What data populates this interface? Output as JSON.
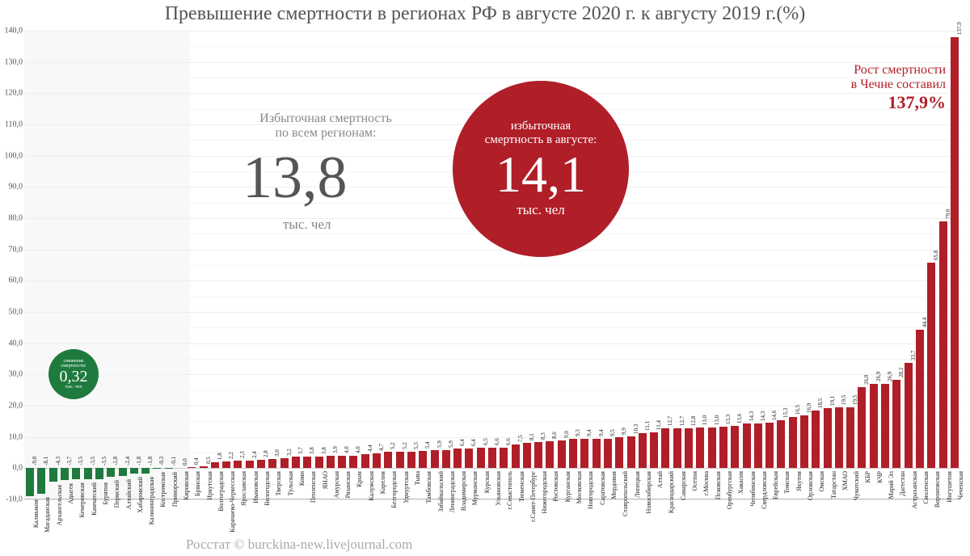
{
  "title": "Превышение смертности в регионах РФ в августе 2020 г. к августу 2019 г.(%)",
  "source": "Росстат © burckina-new.livejournal.com",
  "axes": {
    "ymin": -10,
    "ymax": 140,
    "ytick_step": 10,
    "gridline_color": "#eee",
    "gridline5_color": "#f5f5f5",
    "bg_color": "#ffffff",
    "title_color": "#555",
    "title_fontsize": 24,
    "yaxis_fontsize": 10,
    "source_fontsize": 17,
    "source_color": "#aaa"
  },
  "bars": {
    "neg_color": "#1f7a3e",
    "pos_color": "#b01e28",
    "label_fontsize": 8,
    "value_fontsize": 7,
    "neg_shade_color": "#f8f8f8",
    "items": [
      {
        "label": "Калмыкия",
        "v": -9.0
      },
      {
        "label": "Магаданская",
        "v": -8.1
      },
      {
        "label": "Архангельская",
        "v": -4.3
      },
      {
        "label": "Адыгея",
        "v": -3.7
      },
      {
        "label": "Кемеровская",
        "v": -3.5
      },
      {
        "label": "Камчатский",
        "v": -3.5
      },
      {
        "label": "Бурятия",
        "v": -3.5
      },
      {
        "label": "Пермский",
        "v": -2.8
      },
      {
        "label": "Алтайский",
        "v": -2.4
      },
      {
        "label": "Хабаровский",
        "v": -1.8
      },
      {
        "label": "Калининградская",
        "v": -1.8
      },
      {
        "label": "Костромская",
        "v": -0.3
      },
      {
        "label": "Приморский",
        "v": -0.1
      },
      {
        "label": "Кировская",
        "v": 0.0
      },
      {
        "label": "Брянская",
        "v": 0.4
      },
      {
        "label": "Иркутская",
        "v": 0.5
      },
      {
        "label": "Волгоградская",
        "v": 1.8
      },
      {
        "label": "Карачаево-Черкесская",
        "v": 2.2
      },
      {
        "label": "Ярославская",
        "v": 2.3
      },
      {
        "label": "Ивановская",
        "v": 2.4
      },
      {
        "label": "Вологодская",
        "v": 2.8
      },
      {
        "label": "Тверская",
        "v": 3.0
      },
      {
        "label": "Тульская",
        "v": 3.2
      },
      {
        "label": "Коми",
        "v": 3.7
      },
      {
        "label": "Пензенская",
        "v": 3.8
      },
      {
        "label": "ЯНАО",
        "v": 3.8
      },
      {
        "label": "Амурская",
        "v": 3.9
      },
      {
        "label": "Рязанская",
        "v": 4.0
      },
      {
        "label": "Крым",
        "v": 4.0
      },
      {
        "label": "Калужская",
        "v": 4.4
      },
      {
        "label": "Карелия",
        "v": 4.7
      },
      {
        "label": "Белгородская",
        "v": 5.2
      },
      {
        "label": "Удмуртская",
        "v": 5.2
      },
      {
        "label": "Тыва",
        "v": 5.3
      },
      {
        "label": "Тамбовская",
        "v": 5.4
      },
      {
        "label": "Забайкальский",
        "v": 5.9
      },
      {
        "label": "Ленинградская",
        "v": 5.9
      },
      {
        "label": "Владимирская",
        "v": 6.4
      },
      {
        "label": "Мурманская",
        "v": 6.4
      },
      {
        "label": "Курская",
        "v": 6.5
      },
      {
        "label": "Ульяновская",
        "v": 6.6
      },
      {
        "label": "г.Севастополь",
        "v": 6.6
      },
      {
        "label": "Тюменская",
        "v": 7.5
      },
      {
        "label": "г.Санкт-Петербург",
        "v": 8.1
      },
      {
        "label": "Нижегородская",
        "v": 8.3
      },
      {
        "label": "Ростовская",
        "v": 8.6
      },
      {
        "label": "Курганская",
        "v": 9.0
      },
      {
        "label": "Московская",
        "v": 9.3
      },
      {
        "label": "Новгородская",
        "v": 9.4
      },
      {
        "label": "Саратовская",
        "v": 9.4
      },
      {
        "label": "Мордовия",
        "v": 9.5
      },
      {
        "label": "Ставропольский",
        "v": 9.9
      },
      {
        "label": "Липецкая",
        "v": 10.3
      },
      {
        "label": "Новосибирская",
        "v": 11.1
      },
      {
        "label": "Алтай",
        "v": 11.4
      },
      {
        "label": "Краснодарский",
        "v": 12.7
      },
      {
        "label": "Самарская",
        "v": 12.7
      },
      {
        "label": "Осетия",
        "v": 12.8
      },
      {
        "label": "г.Москва",
        "v": 13.0
      },
      {
        "label": "Псковская",
        "v": 13.0
      },
      {
        "label": "Оренбургская",
        "v": 13.3
      },
      {
        "label": "Хакасия",
        "v": 13.6
      },
      {
        "label": "Челябинская",
        "v": 14.3
      },
      {
        "label": "Свердловская",
        "v": 14.3
      },
      {
        "label": "Еврейская",
        "v": 14.6
      },
      {
        "label": "Томская",
        "v": 15.3
      },
      {
        "label": "Якутия",
        "v": 16.5
      },
      {
        "label": "Орловская",
        "v": 16.9
      },
      {
        "label": "Омская",
        "v": 18.5
      },
      {
        "label": "Татарстан",
        "v": 19.1
      },
      {
        "label": "ХМАО",
        "v": 19.5
      },
      {
        "label": "Чукотский",
        "v": 19.5
      },
      {
        "label": "КБР",
        "v": 26.0
      },
      {
        "label": "КЧР",
        "v": 26.9
      },
      {
        "label": "Марий Эл",
        "v": 26.9
      },
      {
        "label": "Дагестан",
        "v": 28.2
      },
      {
        "label": "Астраханская",
        "v": 33.7
      },
      {
        "label": "Смоленская",
        "v": 44.4
      },
      {
        "label": "Воронежская",
        "v": 65.8
      },
      {
        "label": "Ингушетия",
        "v": 79.0
      },
      {
        "label": "Чеченская",
        "v": 137.9
      }
    ]
  },
  "green_circle": {
    "label_top": "снижение",
    "label_mid": "смертности:",
    "value": "0,32",
    "unit": "тыс. чел",
    "color": "#1f7a3e",
    "text_color": "#ffffff",
    "diameter": 62,
    "value_fontsize": 20,
    "caption_fontsize": 6
  },
  "grey_block": {
    "caption_l1": "Избыточная смертность",
    "caption_l2": "по всем регионам:",
    "value": "13,8",
    "unit": "тыс. чел",
    "caption_color": "#888",
    "caption_fontsize": 16,
    "value_color": "#555",
    "value_fontsize": 74,
    "unit_fontsize": 17
  },
  "red_circle": {
    "caption_l1": "избыточная",
    "caption_l2": "смертность в августе:",
    "value": "14,1",
    "unit": "тыс. чел",
    "color": "#b01e28",
    "text_color": "#ffffff",
    "diameter": 218,
    "caption_fontsize": 15,
    "value_fontsize": 64,
    "unit_fontsize": 17
  },
  "right_annot": {
    "l1": "Рост смертности",
    "l2": "в Чечне составил",
    "l3": "137,9%",
    "l12_fontsize": 16,
    "l3_fontsize": 22,
    "color": "#b01e28"
  }
}
